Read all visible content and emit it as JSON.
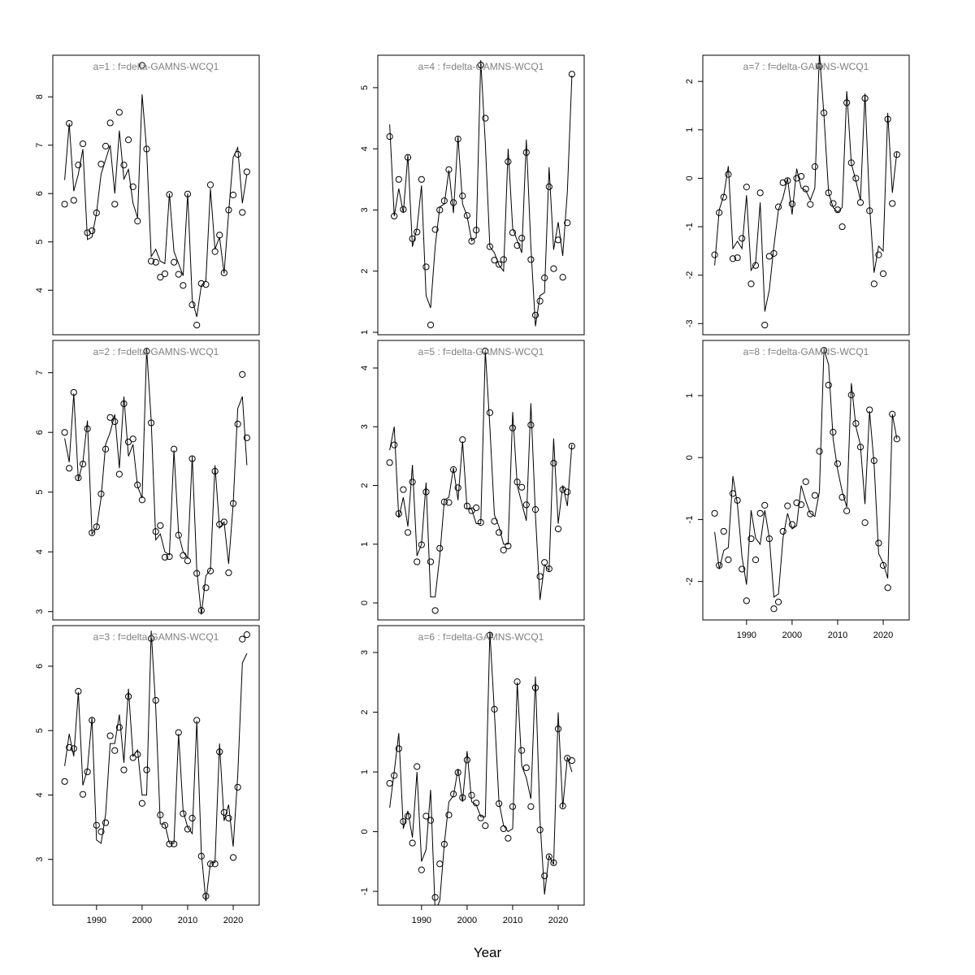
{
  "xlabel": "Year",
  "chart_data": [
    {
      "type": "scatter+line",
      "title": "a=1  :  f=delta-GAMNS-WCQ1",
      "x_start": 1983,
      "x_end": 2023,
      "xlim": [
        1980.4,
        2025.7
      ],
      "ylim": [
        3.08,
        8.86
      ],
      "yticks": [
        4,
        5,
        6,
        7,
        8
      ],
      "xticks": [],
      "observed": [
        5.78,
        7.45,
        5.86,
        6.59,
        7.03,
        5.19,
        5.23,
        5.6,
        6.61,
        6.98,
        7.46,
        5.78,
        7.68,
        6.59,
        7.11,
        6.14,
        5.43,
        8.65,
        6.92,
        4.6,
        4.58,
        4.27,
        4.34,
        5.98,
        4.58,
        4.33,
        4.1,
        5.99,
        3.7,
        3.28,
        4.14,
        4.12,
        6.18,
        4.8,
        5.14,
        4.36,
        5.66,
        5.97,
        6.81,
        5.61,
        6.45
      ],
      "fitted": [
        6.28,
        7.45,
        6.05,
        6.4,
        6.92,
        5.05,
        5.1,
        5.6,
        6.4,
        6.7,
        7.0,
        6.0,
        7.3,
        6.3,
        6.5,
        5.8,
        5.5,
        8.05,
        6.9,
        4.7,
        4.85,
        4.6,
        4.55,
        6.0,
        4.8,
        4.55,
        4.3,
        6.0,
        3.8,
        3.45,
        4.1,
        4.2,
        6.1,
        4.85,
        5.1,
        4.35,
        5.6,
        6.75,
        6.95,
        5.8,
        6.4
      ]
    },
    {
      "type": "scatter+line",
      "title": "a=2  :  f=delta-GAMNS-WCQ1",
      "x_start": 1983,
      "x_end": 2023,
      "xlim": [
        1980.4,
        2025.7
      ],
      "ylim": [
        2.86,
        7.54
      ],
      "yticks": [
        3,
        4,
        5,
        6,
        7
      ],
      "xticks": [],
      "observed": [
        6.0,
        5.4,
        6.67,
        5.24,
        5.47,
        6.06,
        4.32,
        4.42,
        4.97,
        5.72,
        6.25,
        6.18,
        5.3,
        6.48,
        5.84,
        5.89,
        5.12,
        4.87,
        7.36,
        6.16,
        4.34,
        4.44,
        3.91,
        3.92,
        5.72,
        4.28,
        3.94,
        3.85,
        5.56,
        3.64,
        3.02,
        3.4,
        3.68,
        5.35,
        4.46,
        4.5,
        3.65,
        4.81,
        6.14,
        6.97,
        5.91
      ],
      "fitted": [
        5.9,
        5.5,
        6.65,
        5.2,
        5.5,
        6.2,
        4.3,
        4.4,
        4.9,
        5.8,
        6.0,
        6.3,
        5.4,
        6.6,
        5.6,
        5.8,
        5.1,
        4.9,
        7.4,
        6.2,
        4.2,
        4.3,
        4.0,
        3.95,
        5.7,
        4.3,
        4.0,
        3.9,
        5.6,
        3.7,
        2.95,
        3.6,
        3.7,
        5.45,
        4.4,
        4.5,
        3.8,
        4.8,
        6.4,
        6.6,
        5.45
      ]
    },
    {
      "type": "scatter+line",
      "title": "a=3  :  f=delta-GAMNS-WCQ1",
      "x_start": 1983,
      "x_end": 2023,
      "xlim": [
        1980.4,
        2025.7
      ],
      "ylim": [
        2.29,
        6.63
      ],
      "yticks": [
        3,
        4,
        5,
        6
      ],
      "xticks": [
        1990,
        2000,
        2010,
        2020
      ],
      "observed": [
        4.21,
        4.74,
        4.72,
        5.61,
        4.01,
        4.36,
        5.16,
        3.53,
        3.43,
        3.57,
        4.92,
        4.69,
        5.05,
        4.39,
        5.53,
        4.58,
        4.63,
        3.87,
        4.39,
        6.43,
        5.47,
        3.69,
        3.53,
        3.24,
        3.24,
        4.97,
        3.71,
        3.47,
        3.64,
        5.16,
        3.05,
        2.43,
        2.93,
        2.93,
        4.67,
        3.73,
        3.64,
        3.03,
        4.12,
        6.42,
        6.49
      ],
      "fitted": [
        4.45,
        4.95,
        4.6,
        5.6,
        4.15,
        4.4,
        5.2,
        3.3,
        3.25,
        3.7,
        4.8,
        4.8,
        5.25,
        4.5,
        5.65,
        4.6,
        4.7,
        4.0,
        4.0,
        6.55,
        5.35,
        3.55,
        3.55,
        3.25,
        3.25,
        4.95,
        3.75,
        3.5,
        3.4,
        5.15,
        3.1,
        2.35,
        2.95,
        2.95,
        4.8,
        3.6,
        3.85,
        3.2,
        4.3,
        6.05,
        6.2
      ]
    },
    {
      "type": "scatter+line",
      "title": "a=4  :  f=delta-GAMNS-WCQ1",
      "x_start": 1983,
      "x_end": 2023,
      "xlim": [
        1980.4,
        2025.7
      ],
      "ylim": [
        0.96,
        5.53
      ],
      "yticks": [
        1,
        2,
        3,
        4,
        5
      ],
      "xticks": [],
      "observed": [
        4.2,
        2.9,
        3.5,
        3.01,
        3.86,
        2.53,
        2.64,
        3.5,
        2.07,
        1.12,
        2.68,
        3.0,
        3.15,
        3.66,
        3.12,
        4.16,
        3.23,
        2.91,
        2.49,
        2.67,
        5.37,
        4.5,
        2.4,
        2.18,
        2.11,
        2.19,
        3.79,
        2.63,
        2.42,
        2.54,
        3.94,
        2.19,
        1.28,
        1.51,
        1.89,
        3.38,
        2.04,
        2.51,
        1.9,
        2.79,
        5.22
      ],
      "fitted": [
        4.4,
        2.9,
        3.35,
        2.95,
        3.9,
        2.4,
        2.7,
        3.4,
        1.6,
        1.4,
        2.4,
        3.05,
        3.1,
        3.65,
        2.95,
        4.2,
        3.1,
        2.9,
        2.5,
        2.55,
        5.45,
        4.1,
        2.4,
        2.3,
        2.1,
        2.0,
        4.0,
        2.7,
        2.5,
        2.3,
        4.15,
        2.4,
        1.1,
        1.6,
        1.65,
        3.7,
        2.35,
        2.8,
        2.25,
        3.3,
        5.2
      ]
    },
    {
      "type": "scatter+line",
      "title": "a=5  :  f=delta-GAMNS-WCQ1",
      "x_start": 1983,
      "x_end": 2023,
      "xlim": [
        1980.4,
        2025.7
      ],
      "ylim": [
        -0.29,
        4.47
      ],
      "yticks": [
        0,
        1,
        2,
        3,
        4
      ],
      "xticks": [],
      "observed": [
        2.39,
        2.69,
        1.52,
        1.93,
        1.2,
        2.06,
        0.7,
        0.99,
        1.89,
        0.7,
        -0.13,
        0.93,
        1.72,
        1.71,
        2.27,
        1.96,
        2.78,
        1.65,
        1.57,
        1.62,
        1.37,
        4.29,
        3.24,
        1.39,
        1.2,
        0.9,
        0.97,
        2.98,
        2.06,
        1.97,
        1.67,
        3.03,
        1.59,
        0.45,
        0.69,
        0.58,
        2.38,
        1.26,
        1.93,
        1.89,
        2.67
      ],
      "fitted": [
        2.6,
        3.0,
        1.45,
        1.8,
        1.3,
        2.35,
        0.8,
        1.0,
        2.05,
        0.1,
        0.1,
        0.8,
        1.75,
        1.8,
        2.3,
        1.75,
        2.75,
        1.6,
        1.6,
        1.35,
        1.35,
        4.3,
        3.0,
        1.5,
        1.3,
        1.0,
        1.0,
        3.25,
        2.0,
        1.7,
        1.4,
        3.4,
        1.5,
        0.05,
        0.65,
        0.55,
        2.8,
        1.35,
        2.0,
        1.65,
        2.7
      ]
    },
    {
      "type": "scatter+line",
      "title": "a=6  :  f=delta-GAMNS-WCQ1",
      "x_start": 1983,
      "x_end": 2023,
      "xlim": [
        1980.4,
        2025.7
      ],
      "ylim": [
        -1.23,
        3.45
      ],
      "yticks": [
        -1,
        0,
        1,
        2,
        3
      ],
      "xticks": [
        1990,
        2000,
        2010,
        2020
      ],
      "observed": [
        0.81,
        0.94,
        1.39,
        0.17,
        0.26,
        -0.19,
        1.09,
        -0.64,
        0.26,
        0.19,
        -1.1,
        -0.54,
        -0.21,
        0.28,
        0.63,
        0.99,
        0.57,
        1.2,
        0.61,
        0.48,
        0.23,
        0.1,
        3.29,
        2.05,
        0.47,
        0.05,
        -0.11,
        0.42,
        2.51,
        1.36,
        1.07,
        0.42,
        2.41,
        0.03,
        -0.74,
        -0.42,
        -0.52,
        1.72,
        0.43,
        1.23,
        1.19
      ],
      "fitted": [
        0.4,
        1.0,
        1.65,
        0.05,
        0.35,
        -0.1,
        1.0,
        -0.5,
        -0.3,
        0.7,
        -1.35,
        -1.15,
        -0.2,
        0.5,
        0.6,
        1.05,
        0.5,
        1.35,
        0.5,
        0.45,
        0.25,
        0.25,
        3.35,
        2.0,
        0.5,
        0.1,
        0.0,
        0.05,
        2.5,
        1.1,
        0.9,
        0.55,
        2.6,
        0.2,
        -1.05,
        -0.4,
        -0.55,
        2.0,
        0.4,
        1.25,
        1.0
      ]
    },
    {
      "type": "scatter+line",
      "title": "a=7  :  f=delta-GAMNS-WCQ1",
      "x_start": 1983,
      "x_end": 2023,
      "xlim": [
        1980.4,
        2025.7
      ],
      "ylim": [
        -3.23,
        2.54
      ],
      "yticks": [
        -3,
        -2,
        -1,
        0,
        1,
        2
      ],
      "xticks": [],
      "observed": [
        -1.58,
        -0.71,
        -0.39,
        0.08,
        -1.66,
        -1.64,
        -1.24,
        -0.18,
        -2.18,
        -1.8,
        -0.3,
        -3.03,
        -1.61,
        -1.55,
        -0.59,
        -0.09,
        -0.05,
        -0.53,
        0.0,
        0.04,
        -0.22,
        -0.54,
        0.24,
        2.31,
        1.35,
        -0.3,
        -0.52,
        -0.65,
        -1.0,
        1.56,
        0.32,
        0.0,
        -0.5,
        1.65,
        -0.67,
        -2.18,
        -1.58,
        -1.97,
        1.22,
        -0.52,
        0.49
      ],
      "fitted": [
        -1.8,
        -0.65,
        -0.35,
        0.25,
        -1.45,
        -1.3,
        -1.45,
        -0.35,
        -1.9,
        -1.75,
        -0.5,
        -2.75,
        -2.3,
        -1.4,
        -0.65,
        -0.4,
        0.0,
        -0.75,
        0.2,
        -0.2,
        -0.25,
        -0.45,
        -0.2,
        2.6,
        1.3,
        -0.3,
        -0.6,
        -0.7,
        -0.6,
        1.8,
        0.3,
        -0.05,
        -0.45,
        1.75,
        -0.55,
        -1.95,
        -1.4,
        -1.5,
        1.35,
        -0.3,
        0.55
      ]
    },
    {
      "type": "scatter+line",
      "title": "a=8  :  f=delta-GAMNS-WCQ1",
      "x_start": 1983,
      "x_end": 2023,
      "xlim": [
        1980.4,
        2025.7
      ],
      "ylim": [
        -2.62,
        1.89
      ],
      "yticks": [
        -2,
        -1,
        0,
        1
      ],
      "xticks": [
        1990,
        2000,
        2010,
        2020
      ],
      "observed": [
        -0.9,
        -1.74,
        -1.19,
        -1.65,
        -0.58,
        -0.69,
        -1.8,
        -2.31,
        -1.31,
        -1.65,
        -0.9,
        -0.77,
        -1.31,
        -2.44,
        -2.33,
        -1.19,
        -0.78,
        -1.08,
        -0.73,
        -0.76,
        -0.39,
        -0.91,
        -0.61,
        0.1,
        1.73,
        1.17,
        0.41,
        -0.1,
        -0.64,
        -0.86,
        1.01,
        0.55,
        0.17,
        -1.05,
        0.77,
        -0.05,
        -1.38,
        -1.74,
        -2.1,
        0.7,
        0.3
      ],
      "fitted": [
        -1.2,
        -1.8,
        -1.5,
        -1.45,
        -0.3,
        -0.75,
        -1.6,
        -2.05,
        -0.85,
        -1.3,
        -1.4,
        -0.85,
        -1.3,
        -2.25,
        -2.2,
        -1.3,
        -0.9,
        -1.15,
        -1.1,
        -0.45,
        -0.7,
        -0.9,
        -0.95,
        -0.55,
        1.75,
        1.5,
        0.3,
        -0.2,
        -0.55,
        -0.8,
        1.2,
        0.5,
        0.2,
        -0.75,
        0.75,
        -0.1,
        -1.55,
        -1.7,
        -1.95,
        0.7,
        0.3
      ]
    }
  ]
}
